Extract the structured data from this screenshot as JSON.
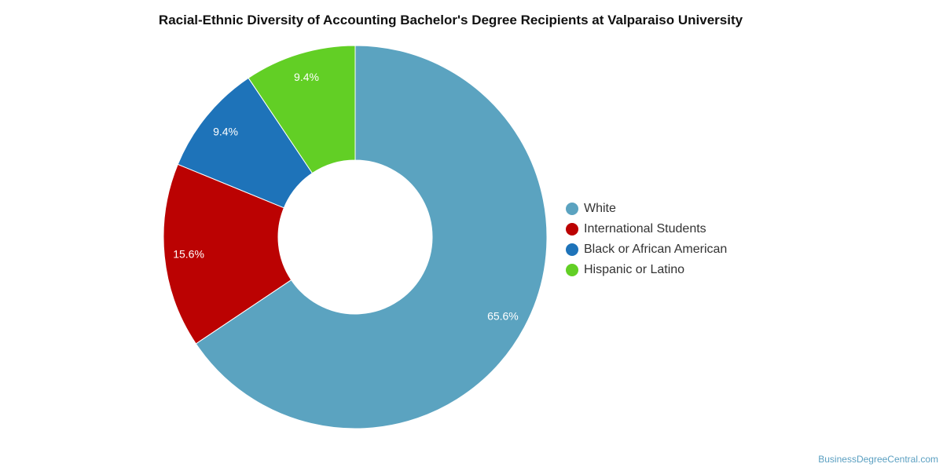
{
  "chart_data": {
    "type": "pie",
    "title": "Racial-Ethnic Diversity of Accounting Bachelor's Degree Recipients at Valparaiso University",
    "donut": true,
    "legend_position": "right",
    "slices": [
      {
        "label": "White",
        "value": 65.6,
        "display": "65.6%",
        "color": "#5ba3c0"
      },
      {
        "label": "International Students",
        "value": 15.6,
        "display": "15.6%",
        "color": "#bb0202"
      },
      {
        "label": "Black or African American",
        "value": 9.4,
        "display": "9.4%",
        "color": "#1e73b9"
      },
      {
        "label": "Hispanic or Latino",
        "value": 9.4,
        "display": "9.4%",
        "color": "#62cf25"
      }
    ]
  },
  "credit": "BusinessDegreeCentral.com"
}
